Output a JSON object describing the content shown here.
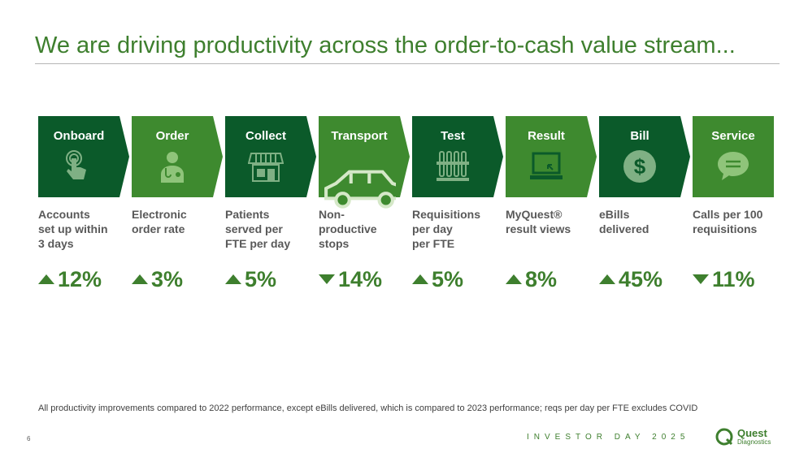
{
  "header": {
    "title": "We are driving productivity across the order-to-cash value stream..."
  },
  "colors": {
    "dark_green": "#0b5a2a",
    "mid_green": "#3e8a2f",
    "accent_text": "#3e7f2e"
  },
  "steps": [
    {
      "label": "Onboard",
      "icon": "finger-touch-icon",
      "shade": "dark",
      "metric": [
        "Accounts",
        "set up within",
        "3 days"
      ],
      "direction": "up",
      "change": "12%"
    },
    {
      "label": "Order",
      "icon": "doctor-icon",
      "shade": "mid",
      "metric": [
        "Electronic",
        "order rate"
      ],
      "direction": "up",
      "change": "3%"
    },
    {
      "label": "Collect",
      "icon": "storefront-icon",
      "shade": "dark",
      "metric": [
        "Patients",
        "served per",
        "FTE per day"
      ],
      "direction": "up",
      "change": "5%"
    },
    {
      "label": "Transport",
      "icon": "car-icon",
      "shade": "mid",
      "metric": [
        "Non-",
        "productive",
        "stops"
      ],
      "direction": "down",
      "change": "14%"
    },
    {
      "label": "Test",
      "icon": "test-tubes-icon",
      "shade": "dark",
      "metric": [
        "Requisitions",
        "per day",
        "per FTE"
      ],
      "direction": "up",
      "change": "5%"
    },
    {
      "label": "Result",
      "icon": "laptop-icon",
      "shade": "mid",
      "metric": [
        "MyQuest®",
        "result views"
      ],
      "direction": "up",
      "change": "8%"
    },
    {
      "label": "Bill",
      "icon": "dollar-icon",
      "shade": "dark",
      "metric": [
        "eBills",
        "delivered"
      ],
      "direction": "up",
      "change": "45%"
    },
    {
      "label": "Service",
      "icon": "chat-bubble-icon",
      "shade": "mid",
      "metric": [
        "Calls per 100",
        "requisitions"
      ],
      "direction": "down",
      "change": "11%"
    }
  ],
  "footnote": "All productivity improvements compared to 2022 performance, except eBills delivered, which is compared to 2023 performance; reqs per day per FTE excludes COVID",
  "footer": {
    "page_number": "6",
    "event": "INVESTOR DAY 2025",
    "logo_word": "Quest",
    "logo_sub": "Diagnostics"
  }
}
